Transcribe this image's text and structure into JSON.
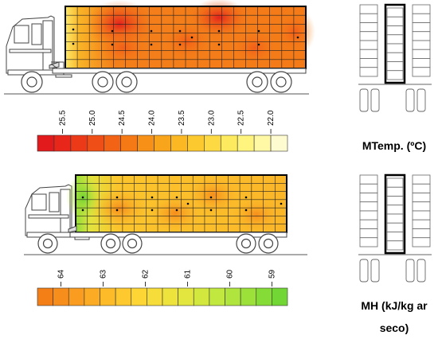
{
  "figure": {
    "caption_temp": "MTemp. (ºC)",
    "caption_mh": "MH (kJ/kg ar seco)"
  },
  "temp_scale": {
    "tick_labels": [
      "25.5",
      "25.0",
      "24.5",
      "24.0",
      "23.5",
      "23.0",
      "22.5",
      "22.0"
    ],
    "colors": [
      "#e31a1c",
      "#e8271a",
      "#ec3a18",
      "#f04e17",
      "#f36316",
      "#f57a16",
      "#f79017",
      "#f9a51b",
      "#fbb823",
      "#fcca2f",
      "#fdda44",
      "#feea5f",
      "#fff47e",
      "#fff9a6",
      "#fffbd0"
    ]
  },
  "mh_scale": {
    "tick_labels": [
      "64",
      "63",
      "62",
      "61",
      "60",
      "59"
    ],
    "colors": [
      "#f57f17",
      "#f78e1b",
      "#f99c1f",
      "#fbac24",
      "#fdbb29",
      "#fec92f",
      "#fdd535",
      "#f7dd3a",
      "#eee33d",
      "#e2e63e",
      "#d3e83f",
      "#c1e83e",
      "#afe53c",
      "#9be13a",
      "#86dc37",
      "#72d634"
    ]
  },
  "temp_heatmap": {
    "hot_centers": [
      "red spots near front, middle and rear of trailer"
    ]
  },
  "chart_data": [
    {
      "type": "heatmap",
      "title": "",
      "unit": "MTemp. (ºC)",
      "scale_ticks": [
        25.5,
        25.0,
        24.5,
        24.0,
        23.5,
        23.0,
        22.5,
        22.0
      ]
    },
    {
      "type": "heatmap",
      "title": "",
      "unit": "MH (kJ/kg ar seco)",
      "scale_ticks": [
        64,
        63,
        62,
        61,
        60,
        59
      ]
    }
  ]
}
